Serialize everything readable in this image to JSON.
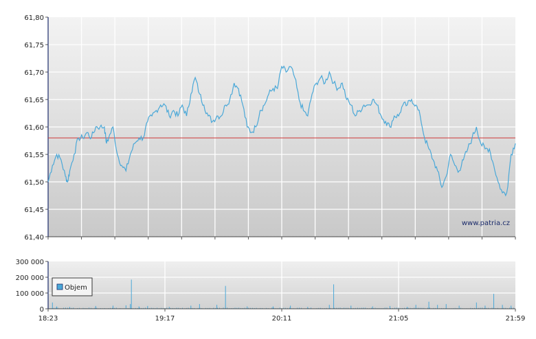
{
  "chart_data": [
    {
      "type": "line",
      "ylim": [
        61.4,
        61.8
      ],
      "yticks": [
        "61,40",
        "61,45",
        "61,50",
        "61,55",
        "61,60",
        "61,65",
        "61,70",
        "61,75",
        "61,80"
      ],
      "xrange_minutes": [
        0,
        216
      ],
      "x_tick_labels": [
        "18:23",
        "19:17",
        "20:11",
        "21:05",
        "21:59"
      ],
      "grid": true,
      "reference_line": {
        "value": 61.58,
        "color": "#cc3333"
      },
      "watermark": "www.patria.cz",
      "line_color": "#4aa8d8",
      "series": [
        {
          "points": [
            [
              0,
              61.5
            ],
            [
              2,
              61.53
            ],
            [
              4,
              61.55
            ],
            [
              6,
              61.54
            ],
            [
              8,
              61.51
            ],
            [
              9,
              61.5
            ],
            [
              10,
              61.52
            ],
            [
              12,
              61.55
            ],
            [
              14,
              61.58
            ],
            [
              16,
              61.58
            ],
            [
              18,
              61.59
            ],
            [
              20,
              61.58
            ],
            [
              22,
              61.6
            ],
            [
              24,
              61.6
            ],
            [
              26,
              61.6
            ],
            [
              27,
              61.57
            ],
            [
              28,
              61.58
            ],
            [
              30,
              61.6
            ],
            [
              32,
              61.55
            ],
            [
              34,
              61.53
            ],
            [
              36,
              61.52
            ],
            [
              38,
              61.55
            ],
            [
              40,
              61.57
            ],
            [
              42,
              61.58
            ],
            [
              44,
              61.58
            ],
            [
              46,
              61.61
            ],
            [
              48,
              61.62
            ],
            [
              50,
              61.63
            ],
            [
              52,
              61.64
            ],
            [
              54,
              61.64
            ],
            [
              56,
              61.62
            ],
            [
              58,
              61.63
            ],
            [
              60,
              61.62
            ],
            [
              62,
              61.64
            ],
            [
              64,
              61.62
            ],
            [
              66,
              61.66
            ],
            [
              68,
              61.69
            ],
            [
              70,
              61.66
            ],
            [
              72,
              61.64
            ],
            [
              74,
              61.62
            ],
            [
              76,
              61.61
            ],
            [
              78,
              61.62
            ],
            [
              80,
              61.62
            ],
            [
              82,
              61.64
            ],
            [
              84,
              61.65
            ],
            [
              86,
              61.68
            ],
            [
              88,
              61.67
            ],
            [
              90,
              61.64
            ],
            [
              92,
              61.6
            ],
            [
              94,
              61.59
            ],
            [
              96,
              61.6
            ],
            [
              98,
              61.63
            ],
            [
              100,
              61.64
            ],
            [
              102,
              61.66
            ],
            [
              104,
              61.67
            ],
            [
              106,
              61.67
            ],
            [
              108,
              61.71
            ],
            [
              110,
              61.7
            ],
            [
              112,
              61.71
            ],
            [
              114,
              61.69
            ],
            [
              116,
              61.65
            ],
            [
              118,
              61.63
            ],
            [
              120,
              61.62
            ],
            [
              122,
              61.66
            ],
            [
              124,
              61.68
            ],
            [
              126,
              61.69
            ],
            [
              128,
              61.68
            ],
            [
              130,
              61.7
            ],
            [
              132,
              61.68
            ],
            [
              134,
              61.67
            ],
            [
              136,
              61.68
            ],
            [
              138,
              61.65
            ],
            [
              140,
              61.64
            ],
            [
              142,
              61.62
            ],
            [
              144,
              61.63
            ],
            [
              146,
              61.64
            ],
            [
              148,
              61.64
            ],
            [
              150,
              61.65
            ],
            [
              152,
              61.64
            ],
            [
              154,
              61.62
            ],
            [
              156,
              61.61
            ],
            [
              158,
              61.6
            ],
            [
              160,
              61.62
            ],
            [
              162,
              61.62
            ],
            [
              164,
              61.64
            ],
            [
              166,
              61.64
            ],
            [
              168,
              61.65
            ],
            [
              170,
              61.64
            ],
            [
              172,
              61.62
            ],
            [
              174,
              61.58
            ],
            [
              176,
              61.56
            ],
            [
              178,
              61.54
            ],
            [
              180,
              61.52
            ],
            [
              182,
              61.49
            ],
            [
              184,
              61.51
            ],
            [
              186,
              61.55
            ],
            [
              188,
              61.53
            ],
            [
              190,
              61.52
            ],
            [
              192,
              61.54
            ],
            [
              194,
              61.56
            ],
            [
              196,
              61.58
            ],
            [
              198,
              61.6
            ],
            [
              200,
              61.57
            ],
            [
              202,
              61.56
            ],
            [
              204,
              61.56
            ],
            [
              206,
              61.53
            ],
            [
              208,
              61.5
            ],
            [
              210,
              61.48
            ],
            [
              212,
              61.48
            ],
            [
              214,
              61.55
            ],
            [
              216,
              61.57
            ]
          ]
        }
      ]
    },
    {
      "type": "bar",
      "ylim": [
        0,
        300000
      ],
      "yticks": [
        "0",
        "100 000",
        "200 000",
        "300 000"
      ],
      "legend": [
        "Objem"
      ],
      "legend_position": "top-left",
      "bar_color": "#4aa8d8",
      "grid": true,
      "spikes": [
        [
          2,
          40000
        ],
        [
          4,
          15000
        ],
        [
          10,
          12000
        ],
        [
          22,
          18000
        ],
        [
          30,
          20000
        ],
        [
          36,
          22000
        ],
        [
          38,
          30000
        ],
        [
          38.5,
          185000
        ],
        [
          42,
          15000
        ],
        [
          46,
          18000
        ],
        [
          56,
          12000
        ],
        [
          66,
          20000
        ],
        [
          70,
          30000
        ],
        [
          78,
          25000
        ],
        [
          82,
          145000
        ],
        [
          92,
          15000
        ],
        [
          104,
          15000
        ],
        [
          112,
          20000
        ],
        [
          120,
          12000
        ],
        [
          130,
          25000
        ],
        [
          132,
          155000
        ],
        [
          140,
          20000
        ],
        [
          150,
          15000
        ],
        [
          158,
          18000
        ],
        [
          166,
          12000
        ],
        [
          170,
          25000
        ],
        [
          176,
          45000
        ],
        [
          180,
          25000
        ],
        [
          184,
          30000
        ],
        [
          190,
          20000
        ],
        [
          198,
          40000
        ],
        [
          202,
          20000
        ],
        [
          206,
          95000
        ],
        [
          210,
          25000
        ],
        [
          214,
          20000
        ]
      ],
      "baseline_small": 6000
    }
  ]
}
